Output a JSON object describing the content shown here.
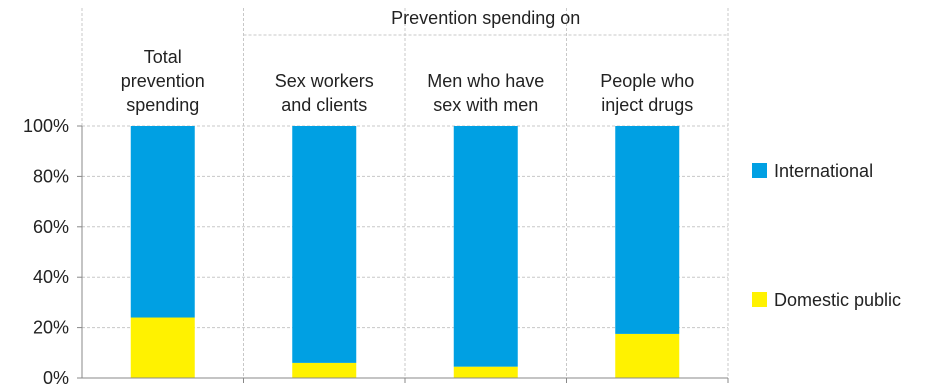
{
  "chart_data": {
    "type": "bar",
    "stacked": true,
    "title": "Prevention spending on",
    "categories": [
      [
        "Total",
        "prevention",
        "spending"
      ],
      [
        "Sex workers",
        "and clients"
      ],
      [
        "Men who have",
        "sex with men"
      ],
      [
        "People who",
        "inject drugs"
      ]
    ],
    "series": [
      {
        "name": "Domestic public",
        "color": "#FFF200",
        "values": [
          24,
          6,
          4.5,
          17.5
        ]
      },
      {
        "name": "International",
        "color": "#00A0E3",
        "values": [
          76,
          94,
          95.5,
          82.5
        ]
      }
    ],
    "yticks": [
      "0%",
      "20%",
      "40%",
      "60%",
      "80%",
      "100%"
    ],
    "ylim": [
      0,
      100
    ],
    "grid": true,
    "legend_position": "right"
  }
}
